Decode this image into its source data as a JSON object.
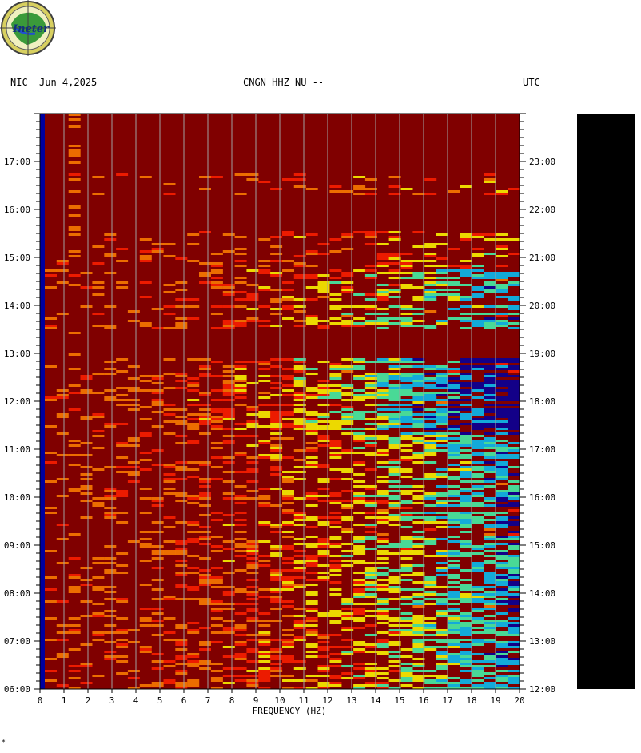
{
  "header": {
    "network": "NIC",
    "date": "Jun 4,2025",
    "station": "CNGN HHZ NU --",
    "timezone": "UTC"
  },
  "logo": {
    "text": "Ineter"
  },
  "corner_mark": "*",
  "chart_data": {
    "type": "heatmap",
    "title": "CNGN HHZ NU --",
    "xlabel": "FREQUENCY (HZ)",
    "xlim": [
      0,
      20
    ],
    "x_ticks": [
      "0",
      "1",
      "2",
      "3",
      "4",
      "5",
      "6",
      "7",
      "8",
      "9",
      "10",
      "11",
      "12",
      "13",
      "14",
      "15",
      "16",
      "17",
      "18",
      "19",
      "20"
    ],
    "y_left_ticks": [
      "06:00",
      "07:00",
      "08:00",
      "09:00",
      "10:00",
      "11:00",
      "12:00",
      "13:00",
      "14:00",
      "15:00",
      "16:00",
      "17:00"
    ],
    "y_right_ticks": [
      "12:00",
      "13:00",
      "14:00",
      "15:00",
      "16:00",
      "17:00",
      "18:00",
      "19:00",
      "20:00",
      "21:00",
      "22:00",
      "23:00"
    ],
    "time_range_local": [
      "06:00",
      "18:00"
    ],
    "colors": {
      "background": "#800000",
      "low": "#0000a0",
      "mid": "#00c8ff",
      "cyan_green": "#40ffb0",
      "yellow": "#ffff00",
      "orange": "#ff8000",
      "red": "#ff2000",
      "grid": "#a0a0a0",
      "colorbar": "#000000"
    }
  }
}
